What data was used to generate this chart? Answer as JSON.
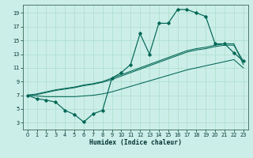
{
  "xlabel": "Humidex (Indice chaleur)",
  "bg_color": "#cceee8",
  "line_color": "#006655",
  "grid_color": "#aaddcc",
  "xlim": [
    -0.5,
    23.5
  ],
  "ylim": [
    2.0,
    20.2
  ],
  "xticks": [
    0,
    1,
    2,
    3,
    4,
    5,
    6,
    7,
    8,
    9,
    10,
    11,
    12,
    13,
    14,
    15,
    16,
    17,
    18,
    19,
    20,
    21,
    22,
    23
  ],
  "yticks": [
    3,
    5,
    7,
    9,
    11,
    13,
    15,
    17,
    19
  ],
  "main_y": [
    7.0,
    6.5,
    6.3,
    6.0,
    4.8,
    4.2,
    3.1,
    4.3,
    4.8,
    9.5,
    10.3,
    11.5,
    16.0,
    13.0,
    17.5,
    17.5,
    19.5,
    19.5,
    19.0,
    18.5,
    14.5,
    14.5,
    13.2,
    12.0
  ],
  "lin_upper1": [
    7.0,
    7.2,
    7.5,
    7.8,
    8.0,
    8.2,
    8.5,
    8.7,
    9.0,
    9.5,
    10.0,
    10.5,
    11.0,
    11.5,
    12.0,
    12.5,
    13.0,
    13.5,
    13.8,
    14.0,
    14.3,
    14.5,
    14.5,
    11.5
  ],
  "lin_upper2": [
    7.0,
    7.1,
    7.4,
    7.7,
    7.9,
    8.1,
    8.4,
    8.6,
    8.9,
    9.3,
    9.8,
    10.3,
    10.8,
    11.3,
    11.8,
    12.3,
    12.8,
    13.3,
    13.6,
    13.8,
    14.1,
    14.3,
    14.3,
    12.0
  ],
  "lin_lower": [
    7.0,
    6.9,
    6.8,
    6.8,
    6.8,
    6.8,
    6.9,
    7.0,
    7.2,
    7.5,
    7.9,
    8.3,
    8.7,
    9.1,
    9.5,
    9.9,
    10.3,
    10.7,
    11.0,
    11.3,
    11.6,
    11.9,
    12.2,
    11.0
  ]
}
